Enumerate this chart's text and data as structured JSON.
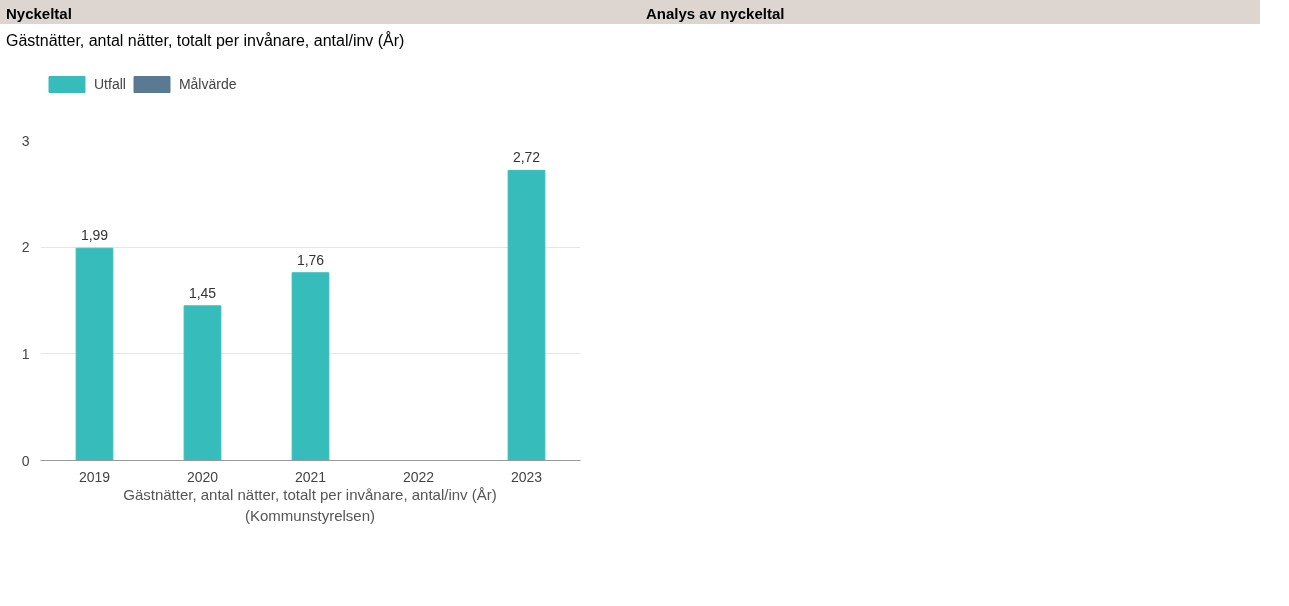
{
  "chart_data": {
    "type": "bar",
    "title": "Gästnätter, antal nätter, totalt per invånare, antal/inv (År)",
    "xlabel": "Gästnätter, antal nätter, totalt per invånare, antal/inv (År) (Kommunstyrelsen)",
    "categories": [
      "2019",
      "2020",
      "2021",
      "2022",
      "2023"
    ],
    "series": [
      {
        "name": "Utfall",
        "color": "#36bdbb",
        "values": [
          1.99,
          1.45,
          1.76,
          null,
          2.72
        ],
        "value_labels": [
          "1,99",
          "1,45",
          "1,76",
          null,
          "2,72"
        ]
      },
      {
        "name": "Målvärde",
        "color": "#5a7a94",
        "values": [
          null,
          null,
          null,
          null,
          null
        ]
      }
    ],
    "ylim": [
      0,
      3
    ],
    "yticks": [
      0,
      1,
      2,
      3
    ],
    "grid": "y",
    "legend": "top left",
    "annotations": [
      "Nyckeltal",
      "Analys av nyckeltal"
    ]
  }
}
